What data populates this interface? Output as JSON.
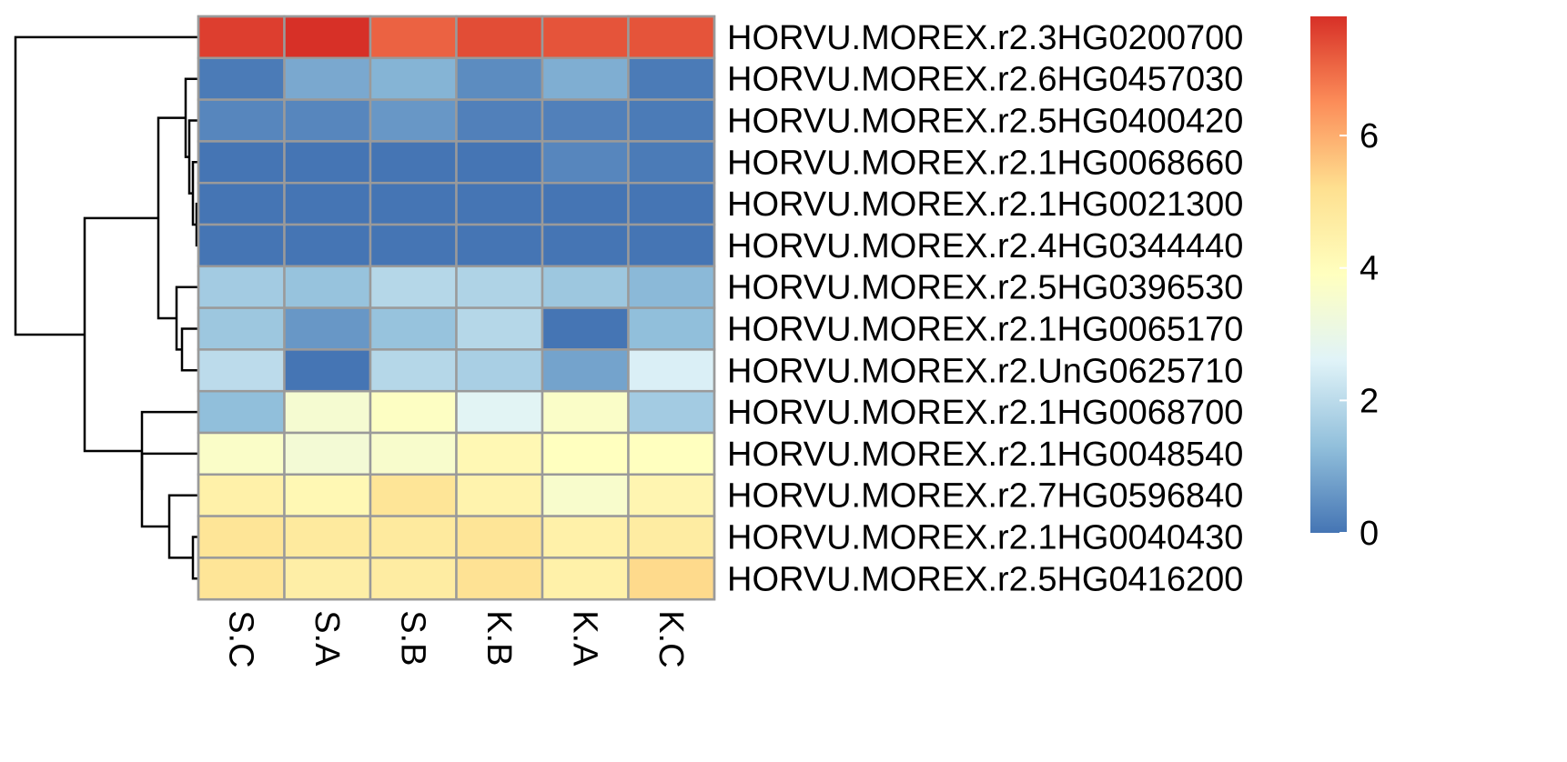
{
  "chart_data": {
    "type": "heatmap",
    "title": "",
    "xlabel": "",
    "ylabel": "",
    "columns": [
      "S.C",
      "S.A",
      "S.B",
      "K.B",
      "K.A",
      "K.C"
    ],
    "rows": [
      "HORVU.MOREX.r2.3HG0200700",
      "HORVU.MOREX.r2.6HG0457030",
      "HORVU.MOREX.r2.5HG0400420",
      "HORVU.MOREX.r2.1HG0068660",
      "HORVU.MOREX.r2.1HG0021300",
      "HORVU.MOREX.r2.4HG0344440",
      "HORVU.MOREX.r2.5HG0396530",
      "HORVU.MOREX.r2.1HG0065170",
      "HORVU.MOREX.r2.UnG0625710",
      "HORVU.MOREX.r2.1HG0068700",
      "HORVU.MOREX.r2.1HG0048540",
      "HORVU.MOREX.r2.7HG0596840",
      "HORVU.MOREX.r2.1HG0040430",
      "HORVU.MOREX.r2.5HG0416200"
    ],
    "values": [
      [
        7.6,
        7.8,
        7.1,
        7.4,
        7.3,
        7.3
      ],
      [
        0.1,
        0.9,
        1.1,
        0.4,
        1.0,
        0.1
      ],
      [
        0.3,
        0.3,
        0.6,
        0.2,
        0.2,
        0.1
      ],
      [
        0.0,
        0.0,
        0.0,
        0.0,
        0.3,
        0.1
      ],
      [
        0.0,
        0.0,
        0.0,
        0.0,
        0.0,
        0.0
      ],
      [
        0.0,
        0.0,
        0.0,
        0.0,
        0.0,
        0.0
      ],
      [
        1.6,
        1.4,
        1.9,
        1.8,
        1.5,
        1.2
      ],
      [
        1.5,
        0.6,
        1.4,
        1.9,
        0.0,
        1.3
      ],
      [
        2.0,
        0.0,
        1.9,
        1.7,
        0.8,
        2.5
      ],
      [
        1.3,
        3.5,
        3.8,
        2.7,
        3.7,
        1.6
      ],
      [
        3.7,
        3.4,
        3.6,
        4.2,
        3.9,
        3.9
      ],
      [
        4.5,
        4.2,
        5.0,
        4.4,
        3.6,
        4.3
      ],
      [
        5.0,
        4.8,
        4.8,
        5.0,
        4.5,
        4.7
      ],
      [
        5.0,
        4.6,
        4.7,
        5.1,
        4.5,
        5.3
      ]
    ],
    "color_scale": {
      "min": 0,
      "max": 7.8,
      "stops": [
        "#4575B4",
        "#91BFDB",
        "#E0F3F8",
        "#FFFFBF",
        "#FEE090",
        "#FC8D59",
        "#D73027"
      ]
    },
    "legend": {
      "ticks": [
        0,
        2,
        4,
        6
      ],
      "position": "right"
    },
    "grid": true
  }
}
